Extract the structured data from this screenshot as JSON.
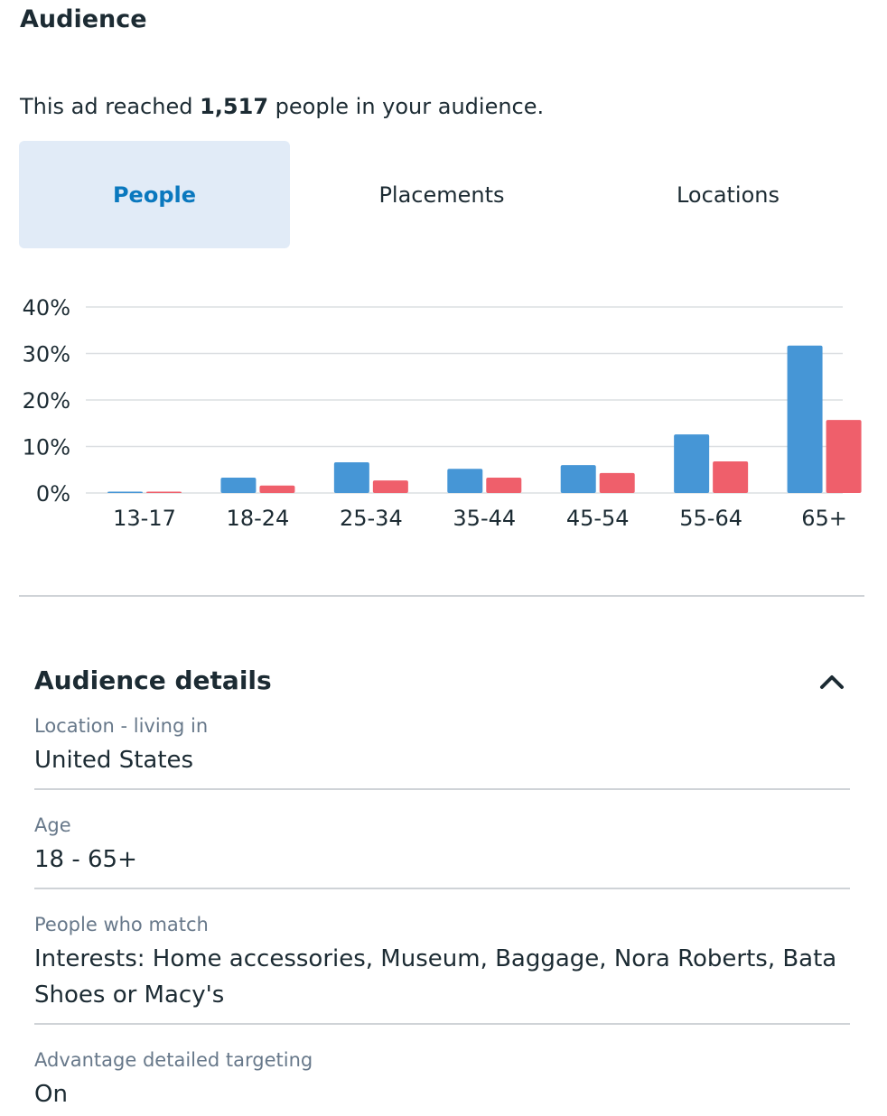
{
  "header": {
    "title": "Audience",
    "reach_prefix": "This ad reached",
    "reach_count": "1,517",
    "reach_suffix": "people in your audience."
  },
  "tabs": [
    "People",
    "Placements",
    "Locations"
  ],
  "chart_data": {
    "type": "bar",
    "categories": [
      "13-17",
      "18-24",
      "25-34",
      "35-44",
      "45-54",
      "55-64",
      "65+"
    ],
    "series": [
      {
        "color": "#4696d6",
        "values": [
          0.3,
          3.3,
          6.6,
          5.2,
          6.0,
          12.6,
          31.7
        ]
      },
      {
        "color": "#ef5f6b",
        "values": [
          0.3,
          1.6,
          2.7,
          3.3,
          4.3,
          6.8,
          15.7
        ]
      }
    ],
    "ylim": [
      0,
      40
    ],
    "yticks": [
      {
        "value": 0,
        "label": "0%"
      },
      {
        "value": 10,
        "label": "10%"
      },
      {
        "value": 20,
        "label": "20%"
      },
      {
        "value": 30,
        "label": "30%"
      },
      {
        "value": 40,
        "label": "40%"
      }
    ],
    "grid": true
  },
  "details": {
    "title": "Audience details",
    "items": [
      {
        "label": "Location - living in",
        "value": "United States"
      },
      {
        "label": "Age",
        "value": "18 - 65+"
      },
      {
        "label": "People who match",
        "value": "Interests: Home accessories, Museum, Baggage, Nora Roberts, Bata Shoes or Macy's"
      },
      {
        "label": "Advantage detailed targeting",
        "value": "On"
      }
    ]
  }
}
